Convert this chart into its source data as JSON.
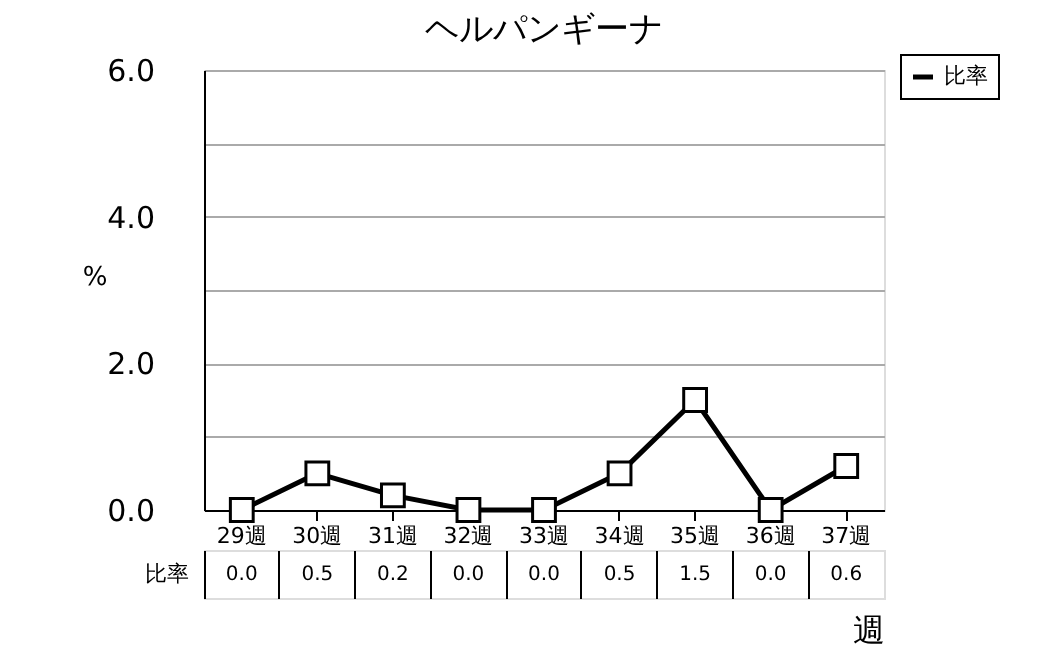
{
  "chart_data": {
    "type": "line",
    "title": "ヘルパンギーナ",
    "xlabel": "週",
    "ylabel": "%",
    "categories": [
      "29週",
      "30週",
      "31週",
      "32週",
      "33週",
      "34週",
      "35週",
      "36週",
      "37週"
    ],
    "series": [
      {
        "name": "比率",
        "color": "#000000",
        "values": [
          0.0,
          0.5,
          0.2,
          0.0,
          0.0,
          0.5,
          1.5,
          0.0,
          0.6
        ],
        "value_labels": [
          "0.0",
          "0.5",
          "0.2",
          "0.0",
          "0.0",
          "0.5",
          "1.5",
          "0.0",
          "0.6"
        ]
      }
    ],
    "ylim": [
      0,
      6
    ],
    "yticks": [
      {
        "value": 0,
        "label": "0.0"
      },
      {
        "value": 1,
        "label": null
      },
      {
        "value": 2,
        "label": "2.0"
      },
      {
        "value": 3,
        "label": null
      },
      {
        "value": 4,
        "label": "4.0"
      },
      {
        "value": 5,
        "label": null
      },
      {
        "value": 6,
        "label": "6.0"
      }
    ],
    "grid": "y",
    "legend": "top right",
    "marker": "square",
    "line_style": "solid"
  }
}
